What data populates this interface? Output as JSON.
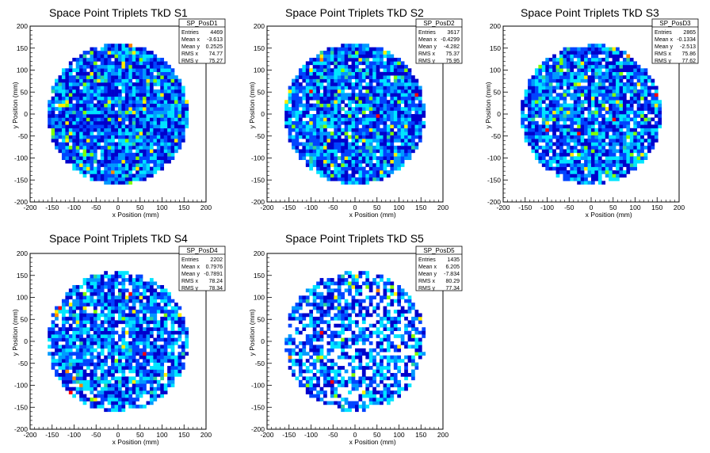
{
  "chart_data": [
    {
      "type": "heatmap",
      "title": "Space Point Triplets TkD S1",
      "xlabel": "x Position (mm)",
      "ylabel": "y Position (mm)",
      "xlim": [
        -200,
        200
      ],
      "ylim": [
        -200,
        200
      ],
      "xticks": [
        -200,
        -150,
        -100,
        -50,
        0,
        50,
        100,
        150,
        200
      ],
      "yticks": [
        -200,
        -150,
        -100,
        -50,
        0,
        50,
        100,
        150,
        200
      ],
      "footprint": "circle of radius ~160 mm centred at origin",
      "stats": {
        "name": "SP_PosD1",
        "rows": [
          {
            "label": "Entries",
            "value": "4469"
          },
          {
            "label": "Mean x",
            "value": "-3.613"
          },
          {
            "label": "Mean y",
            "value": "0.2525"
          },
          {
            "label": "RMS x",
            "value": "74.77"
          },
          {
            "label": "RMS y",
            "value": "75.27"
          }
        ]
      }
    },
    {
      "type": "heatmap",
      "title": "Space Point Triplets TkD S2",
      "xlabel": "x Position (mm)",
      "ylabel": "y Position (mm)",
      "xlim": [
        -200,
        200
      ],
      "ylim": [
        -200,
        200
      ],
      "xticks": [
        -200,
        -150,
        -100,
        -50,
        0,
        50,
        100,
        150,
        200
      ],
      "yticks": [
        -200,
        -150,
        -100,
        -50,
        0,
        50,
        100,
        150,
        200
      ],
      "footprint": "circle of radius ~160 mm centred at origin",
      "stats": {
        "name": "SP_PosD2",
        "rows": [
          {
            "label": "Entries",
            "value": "3617"
          },
          {
            "label": "Mean x",
            "value": "-0.4299"
          },
          {
            "label": "Mean y",
            "value": "-4.282"
          },
          {
            "label": "RMS x",
            "value": "75.37"
          },
          {
            "label": "RMS y",
            "value": "75.95"
          }
        ]
      }
    },
    {
      "type": "heatmap",
      "title": "Space Point Triplets TkD S3",
      "xlabel": "x Position (mm)",
      "ylabel": "y Position (mm)",
      "xlim": [
        -200,
        200
      ],
      "ylim": [
        -200,
        200
      ],
      "xticks": [
        -200,
        -150,
        -100,
        -50,
        0,
        50,
        100,
        150,
        200
      ],
      "yticks": [
        -200,
        -150,
        -100,
        -50,
        0,
        50,
        100,
        150,
        200
      ],
      "footprint": "circle of radius ~160 mm centred at origin",
      "stats": {
        "name": "SP_PosD3",
        "rows": [
          {
            "label": "Entries",
            "value": "2865"
          },
          {
            "label": "Mean x",
            "value": "-0.1334"
          },
          {
            "label": "Mean y",
            "value": "-2.513"
          },
          {
            "label": "RMS x",
            "value": "75.86"
          },
          {
            "label": "RMS y",
            "value": "77.62"
          }
        ]
      }
    },
    {
      "type": "heatmap",
      "title": "Space Point Triplets TkD S4",
      "xlabel": "x Position (mm)",
      "ylabel": "y Position (mm)",
      "xlim": [
        -200,
        200
      ],
      "ylim": [
        -200,
        200
      ],
      "xticks": [
        -200,
        -150,
        -100,
        -50,
        0,
        50,
        100,
        150,
        200
      ],
      "yticks": [
        -200,
        -150,
        -100,
        -50,
        0,
        50,
        100,
        150,
        200
      ],
      "footprint": "circle of radius ~160 mm centred at origin",
      "stats": {
        "name": "SP_PosD4",
        "rows": [
          {
            "label": "Entries",
            "value": "2202"
          },
          {
            "label": "Mean x",
            "value": "0.7976"
          },
          {
            "label": "Mean y",
            "value": "-0.7891"
          },
          {
            "label": "RMS x",
            "value": "78.24"
          },
          {
            "label": "RMS y",
            "value": "78.34"
          }
        ]
      }
    },
    {
      "type": "heatmap",
      "title": "Space Point Triplets TkD S5",
      "xlabel": "x Position (mm)",
      "ylabel": "y Position (mm)",
      "xlim": [
        -200,
        200
      ],
      "ylim": [
        -200,
        200
      ],
      "xticks": [
        -200,
        -150,
        -100,
        -50,
        0,
        50,
        100,
        150,
        200
      ],
      "yticks": [
        -200,
        -150,
        -100,
        -50,
        0,
        50,
        100,
        150,
        200
      ],
      "footprint": "circle of radius ~160 mm centred at origin",
      "stats": {
        "name": "SP_PosD5",
        "rows": [
          {
            "label": "Entries",
            "value": "1435"
          },
          {
            "label": "Mean x",
            "value": "6.205"
          },
          {
            "label": "Mean y",
            "value": "-7.834"
          },
          {
            "label": "RMS x",
            "value": "80.29"
          },
          {
            "label": "RMS y",
            "value": "77.34"
          }
        ]
      }
    }
  ],
  "colors": {
    "palette": [
      "#0000cc",
      "#0044ff",
      "#0099ff",
      "#00e5ff",
      "#2fd19a",
      "#7fff00",
      "#ffee00",
      "#ff8800",
      "#ff0000"
    ],
    "frame": "#000000",
    "background": "#ffffff"
  }
}
